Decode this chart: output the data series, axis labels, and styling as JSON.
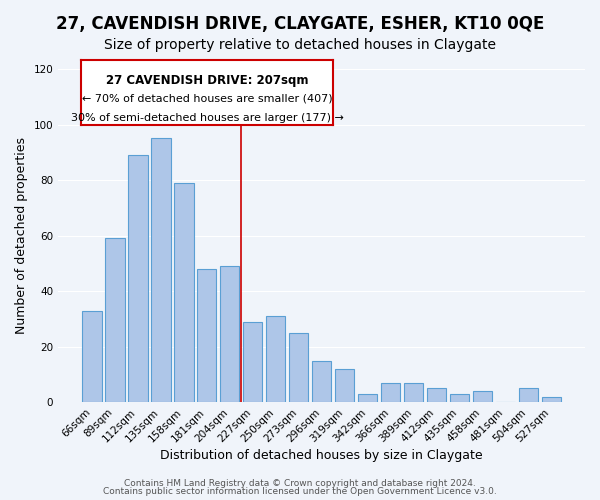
{
  "title": "27, CAVENDISH DRIVE, CLAYGATE, ESHER, KT10 0QE",
  "subtitle": "Size of property relative to detached houses in Claygate",
  "xlabel": "Distribution of detached houses by size in Claygate",
  "ylabel": "Number of detached properties",
  "bar_labels": [
    "66sqm",
    "89sqm",
    "112sqm",
    "135sqm",
    "158sqm",
    "181sqm",
    "204sqm",
    "227sqm",
    "250sqm",
    "273sqm",
    "296sqm",
    "319sqm",
    "342sqm",
    "366sqm",
    "389sqm",
    "412sqm",
    "435sqm",
    "458sqm",
    "481sqm",
    "504sqm",
    "527sqm"
  ],
  "bar_values": [
    33,
    59,
    89,
    95,
    79,
    48,
    49,
    29,
    31,
    25,
    15,
    12,
    3,
    7,
    7,
    5,
    3,
    4,
    0,
    5,
    2
  ],
  "bar_color": "#aec6e8",
  "bar_edge_color": "#5a9fd4",
  "highlight_index": 6,
  "highlight_color": "#aec6e8",
  "highlight_edge_color": "#5a9fd4",
  "annotation_title": "27 CAVENDISH DRIVE: 207sqm",
  "annotation_line1": "← 70% of detached houses are smaller (407)",
  "annotation_line2": "30% of semi-detached houses are larger (177) →",
  "annotation_box_color": "#ffffff",
  "annotation_box_edge": "#cc0000",
  "vline_x": 6,
  "ylim": [
    0,
    120
  ],
  "yticks": [
    0,
    20,
    40,
    60,
    80,
    100,
    120
  ],
  "footer1": "Contains HM Land Registry data © Crown copyright and database right 2024.",
  "footer2": "Contains public sector information licensed under the Open Government Licence v3.0.",
  "bg_color": "#f0f4fa",
  "plot_bg_color": "#f0f4fa",
  "title_fontsize": 12,
  "subtitle_fontsize": 10,
  "axis_label_fontsize": 9,
  "tick_fontsize": 7.5,
  "annotation_fontsize": 8.5,
  "footer_fontsize": 6.5
}
